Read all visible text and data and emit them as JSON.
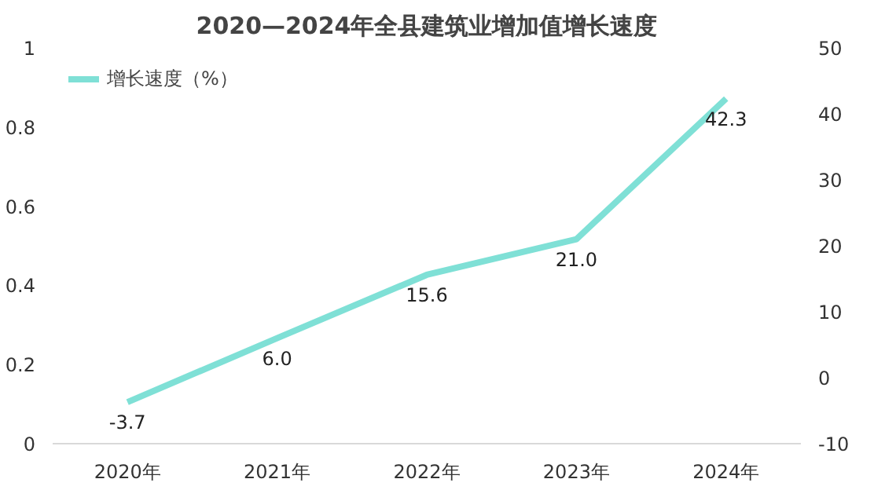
{
  "chart_data": {
    "type": "line",
    "title": "2020—2024年全县建筑业增加值增长速度",
    "categories": [
      "2020年",
      "2021年",
      "2022年",
      "2023年",
      "2024年"
    ],
    "series": [
      {
        "name": "增长速度（%）",
        "color": "#7fe0d6",
        "axis": "y2",
        "values": [
          -3.7,
          6.0,
          15.6,
          21.0,
          42.3
        ],
        "value_labels": [
          "-3.7",
          "6.0",
          "15.6",
          "21.0",
          "42.3"
        ]
      }
    ],
    "ylim": [
      0,
      1
    ],
    "yticks": [
      0,
      0.2,
      0.4,
      0.6,
      0.8,
      1
    ],
    "y2lim": [
      -10,
      50
    ],
    "y2ticks": [
      -10,
      0,
      10,
      20,
      30,
      40,
      50
    ],
    "legend": "top left",
    "grid": false,
    "marker": "none",
    "line_style": "solid"
  }
}
